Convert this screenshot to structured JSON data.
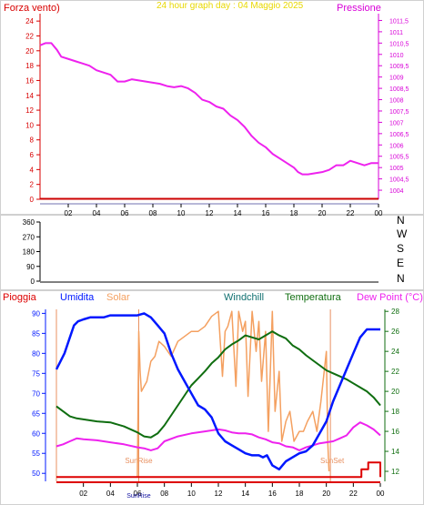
{
  "colors": {
    "background": "#ffffff",
    "axis": "#000000",
    "wind_axis": "#d80000",
    "pressure_axis": "#d800d8",
    "title": "#e8d800",
    "pressure": "#ee22ee",
    "wind_line": "#cc0000",
    "rain": "#dd0000",
    "humidity": "#0018ff",
    "solar": "#f4a060",
    "windchill": "#107070",
    "temperature": "#106e10",
    "dewpoint": "#ee22ee",
    "sun_marker": "#e89060"
  },
  "chart_data": [
    {
      "type": "line",
      "title": "24 hour graph day : 04 Maggio 2025",
      "left_label": "Forza vento)",
      "right_label": "Pressione",
      "x_ticks": [
        "02",
        "04",
        "06",
        "08",
        "10",
        "12",
        "14",
        "16",
        "18",
        "20",
        "22",
        "00"
      ],
      "x_range_hours": [
        0,
        24
      ],
      "y_left": {
        "range": [
          0,
          25
        ],
        "ticks": [
          "0",
          "2",
          "4",
          "6",
          "8",
          "10",
          "12",
          "14",
          "16",
          "18",
          "20",
          "22",
          "24"
        ]
      },
      "y_right": {
        "range": [
          1003.6,
          1011.8
        ],
        "ticks": [
          "1004",
          "1004,5",
          "1005",
          "1005,5",
          "1006",
          "1006,5",
          "1007",
          "1007,5",
          "1008",
          "1008,5",
          "1009",
          "1009,5",
          "1010",
          "1010,5",
          "1011",
          "1011,5"
        ]
      },
      "grid": false,
      "series": [
        {
          "axis": "right",
          "x": [
            0.0,
            0.4,
            0.8,
            1.2,
            1.5,
            2.0,
            2.5,
            3.0,
            3.5,
            4.0,
            4.5,
            5.0,
            5.5,
            6.0,
            6.5,
            7.0,
            7.5,
            8.0,
            8.5,
            9.0,
            9.5,
            10.0,
            10.5,
            11.0,
            11.5,
            12.0,
            12.5,
            13.0,
            13.5,
            14.0,
            14.5,
            15.0,
            15.5,
            16.0,
            16.5,
            17.0,
            17.5,
            18.0,
            18.3,
            18.6,
            19.0,
            19.5,
            20.0,
            20.5,
            21.0,
            21.5,
            22.0,
            22.5,
            23.0,
            23.5,
            24.0
          ],
          "y": [
            1010.4,
            1010.5,
            1010.5,
            1010.2,
            1009.9,
            1009.8,
            1009.7,
            1009.6,
            1009.5,
            1009.3,
            1009.2,
            1009.1,
            1008.8,
            1008.8,
            1008.9,
            1008.85,
            1008.8,
            1008.75,
            1008.7,
            1008.6,
            1008.55,
            1008.6,
            1008.5,
            1008.3,
            1008.0,
            1007.9,
            1007.7,
            1007.6,
            1007.3,
            1007.1,
            1006.8,
            1006.4,
            1006.1,
            1005.9,
            1005.6,
            1005.4,
            1005.2,
            1005.0,
            1004.8,
            1004.7,
            1004.7,
            1004.75,
            1004.8,
            1004.9,
            1005.1,
            1005.1,
            1005.3,
            1005.2,
            1005.1,
            1005.2,
            1005.2
          ]
        },
        {
          "axis": "left",
          "x": [
            0,
            24
          ],
          "y": [
            0,
            0
          ]
        }
      ]
    },
    {
      "type": "scatter",
      "direction_labels": [
        "N",
        "W",
        "S",
        "E",
        "N"
      ],
      "y_ticks": [
        "0",
        "90",
        "180",
        "270",
        "360"
      ],
      "y_range": [
        0,
        360
      ],
      "x_range_hours": [
        0,
        24
      ],
      "points": []
    },
    {
      "type": "line",
      "legend": [
        "Pioggia",
        "Umidita",
        "Solar",
        "Windchill",
        "Temperatura",
        "Dew Point (°C)"
      ],
      "x_ticks": [
        "02",
        "04",
        "06",
        "08",
        "10",
        "12",
        "14",
        "16",
        "18",
        "20",
        "22",
        "00"
      ],
      "x_range_hours": [
        0,
        24
      ],
      "sun_labels": {
        "sunrise": "SunRise",
        "sunset": "SunSet",
        "sunrise_hour": 6.1,
        "sunset_hour": 20.3
      },
      "y_left": {
        "range": [
          48,
          91
        ],
        "ticks": [
          "50",
          "55",
          "60",
          "65",
          "70",
          "75",
          "80",
          "85",
          "90"
        ]
      },
      "y_right": {
        "range": [
          11.0,
          28.2
        ],
        "ticks": [
          "12",
          "14",
          "16",
          "18",
          "20",
          "22",
          "24",
          "26",
          "28"
        ]
      },
      "grid": false,
      "series": [
        {
          "name": "Umidita",
          "axis": "left",
          "x": [
            0.0,
            0.3,
            0.6,
            1.0,
            1.3,
            1.6,
            2.0,
            2.5,
            3.0,
            3.5,
            4.0,
            5.0,
            6.0,
            6.5,
            7.0,
            7.5,
            8.0,
            8.5,
            9.0,
            9.5,
            10.0,
            10.5,
            11.0,
            11.5,
            12.0,
            12.5,
            13.0,
            13.5,
            14.0,
            14.5,
            15.0,
            15.3,
            15.6,
            16.0,
            16.5,
            17.0,
            17.5,
            18.0,
            18.5,
            19.0,
            19.5,
            20.0,
            20.5,
            21.0,
            21.5,
            22.0,
            22.5,
            23.0,
            23.5,
            24.0
          ],
          "y": [
            76,
            78,
            80,
            84,
            87,
            88,
            88.5,
            89,
            89,
            89,
            89.5,
            89.5,
            89.5,
            90,
            89,
            87,
            85,
            80,
            76,
            73,
            70,
            67,
            66,
            64,
            60,
            58,
            57,
            56,
            55,
            54.5,
            54.5,
            54,
            54.5,
            52,
            51,
            53,
            54,
            55,
            55.5,
            57,
            60,
            63,
            68,
            72,
            76,
            80,
            84,
            86,
            86,
            86
          ]
        },
        {
          "name": "Solar",
          "axis": "right",
          "x": [
            6.0,
            6.1,
            6.2,
            6.3,
            6.5,
            6.7,
            7.0,
            7.3,
            7.6,
            8.0,
            8.5,
            9.0,
            9.5,
            10.0,
            10.5,
            11.0,
            11.5,
            12.0,
            12.3,
            12.5,
            12.7,
            13.0,
            13.3,
            13.5,
            13.8,
            14.0,
            14.2,
            14.5,
            14.8,
            15.0,
            15.2,
            15.5,
            15.7,
            16.0,
            16.2,
            16.5,
            16.7,
            17.0,
            17.3,
            17.6,
            18.0,
            18.3,
            18.6,
            19.0,
            19.3,
            19.6,
            20.0,
            20.1,
            20.2
          ],
          "y": [
            11.5,
            26,
            22,
            20,
            20.5,
            21,
            23,
            23.5,
            25,
            24.5,
            23.5,
            25,
            25.5,
            26,
            26,
            26.5,
            27.5,
            28,
            21.5,
            26,
            26.5,
            28,
            20.5,
            28,
            26,
            27,
            19.5,
            28,
            24,
            27,
            21,
            26,
            16,
            28,
            18,
            22,
            15,
            17,
            18,
            15,
            16,
            16,
            17,
            18,
            16,
            19,
            24,
            15,
            12
          ]
        },
        {
          "name": "Windchill",
          "axis": "right",
          "x": [
            0.0,
            0.5,
            1.0,
            1.5,
            2.0,
            3.0,
            4.0,
            5.0,
            6.0,
            6.5,
            7.0,
            7.5,
            8.0,
            8.5,
            9.0,
            9.5,
            10.0,
            10.5,
            11.0,
            11.5,
            12.0,
            12.5,
            13.0,
            13.5,
            14.0,
            14.5,
            15.0,
            15.5,
            16.0,
            16.5,
            17.0,
            17.5,
            18.0,
            18.5,
            19.0,
            19.5,
            20.0,
            20.5,
            21.0,
            21.5,
            22.0,
            22.5,
            23.0,
            23.5,
            24.0
          ],
          "y": [
            18.5,
            18,
            17.5,
            17.3,
            17.2,
            17,
            16.9,
            16.5,
            15.9,
            15.5,
            15.4,
            15.8,
            16.6,
            17.6,
            18.6,
            19.6,
            20.6,
            21.3,
            22,
            22.8,
            23.4,
            24.2,
            24.7,
            25.1,
            25.6,
            25.4,
            25.2,
            25.6,
            26,
            25.6,
            25.3,
            24.6,
            24.2,
            23.6,
            23.1,
            22.6,
            22.1,
            21.8,
            21.5,
            21.2,
            20.8,
            20.4,
            20,
            19.4,
            18.6
          ]
        },
        {
          "name": "Temperatura",
          "axis": "right",
          "x": [
            0.0,
            0.5,
            1.0,
            1.5,
            2.0,
            3.0,
            4.0,
            5.0,
            6.0,
            6.5,
            7.0,
            7.5,
            8.0,
            8.5,
            9.0,
            9.5,
            10.0,
            10.5,
            11.0,
            11.5,
            12.0,
            12.5,
            13.0,
            13.5,
            14.0,
            14.5,
            15.0,
            15.5,
            16.0,
            16.5,
            17.0,
            17.5,
            18.0,
            18.5,
            19.0,
            19.5,
            20.0,
            20.5,
            21.0,
            21.5,
            22.0,
            22.5,
            23.0,
            23.5,
            24.0
          ],
          "y": [
            18.5,
            18,
            17.5,
            17.3,
            17.2,
            17,
            16.9,
            16.5,
            15.9,
            15.5,
            15.4,
            15.8,
            16.6,
            17.6,
            18.6,
            19.6,
            20.6,
            21.3,
            22,
            22.8,
            23.4,
            24.2,
            24.7,
            25.1,
            25.6,
            25.4,
            25.2,
            25.6,
            26,
            25.6,
            25.3,
            24.6,
            24.2,
            23.6,
            23.1,
            22.6,
            22.1,
            21.8,
            21.5,
            21.2,
            20.8,
            20.4,
            20,
            19.4,
            18.6
          ]
        },
        {
          "name": "Dew Point (°C)",
          "axis": "right",
          "x": [
            0.0,
            0.5,
            1.0,
            1.5,
            2.0,
            3.0,
            4.0,
            5.0,
            6.0,
            6.5,
            7.0,
            7.5,
            8.0,
            9.0,
            10.0,
            11.0,
            12.0,
            12.5,
            13.0,
            13.5,
            14.0,
            14.5,
            15.0,
            15.5,
            16.0,
            16.5,
            17.0,
            17.5,
            18.0,
            18.5,
            19.0,
            19.5,
            20.0,
            20.5,
            21.0,
            21.5,
            22.0,
            22.5,
            23.0,
            23.5,
            24.0
          ],
          "y": [
            14.5,
            14.7,
            15,
            15.3,
            15.2,
            15.1,
            14.9,
            14.7,
            14.4,
            14.3,
            14.1,
            14.3,
            15,
            15.5,
            15.8,
            16,
            16.2,
            16.1,
            15.9,
            15.8,
            15.8,
            15.7,
            15.4,
            15.2,
            14.9,
            14.8,
            14.5,
            14.4,
            14.1,
            14.4,
            14.6,
            14.8,
            14.9,
            15,
            15.3,
            15.6,
            16.4,
            16.9,
            16.6,
            16.2,
            15.6
          ]
        },
        {
          "name": "Pioggia",
          "axis": "left",
          "x": [
            0,
            22.6,
            22.6,
            23.1,
            23.1,
            24.0,
            24.0
          ],
          "y": [
            49.1,
            49.1,
            51.0,
            51.0,
            52.7,
            52.7,
            49.1
          ]
        }
      ]
    }
  ]
}
